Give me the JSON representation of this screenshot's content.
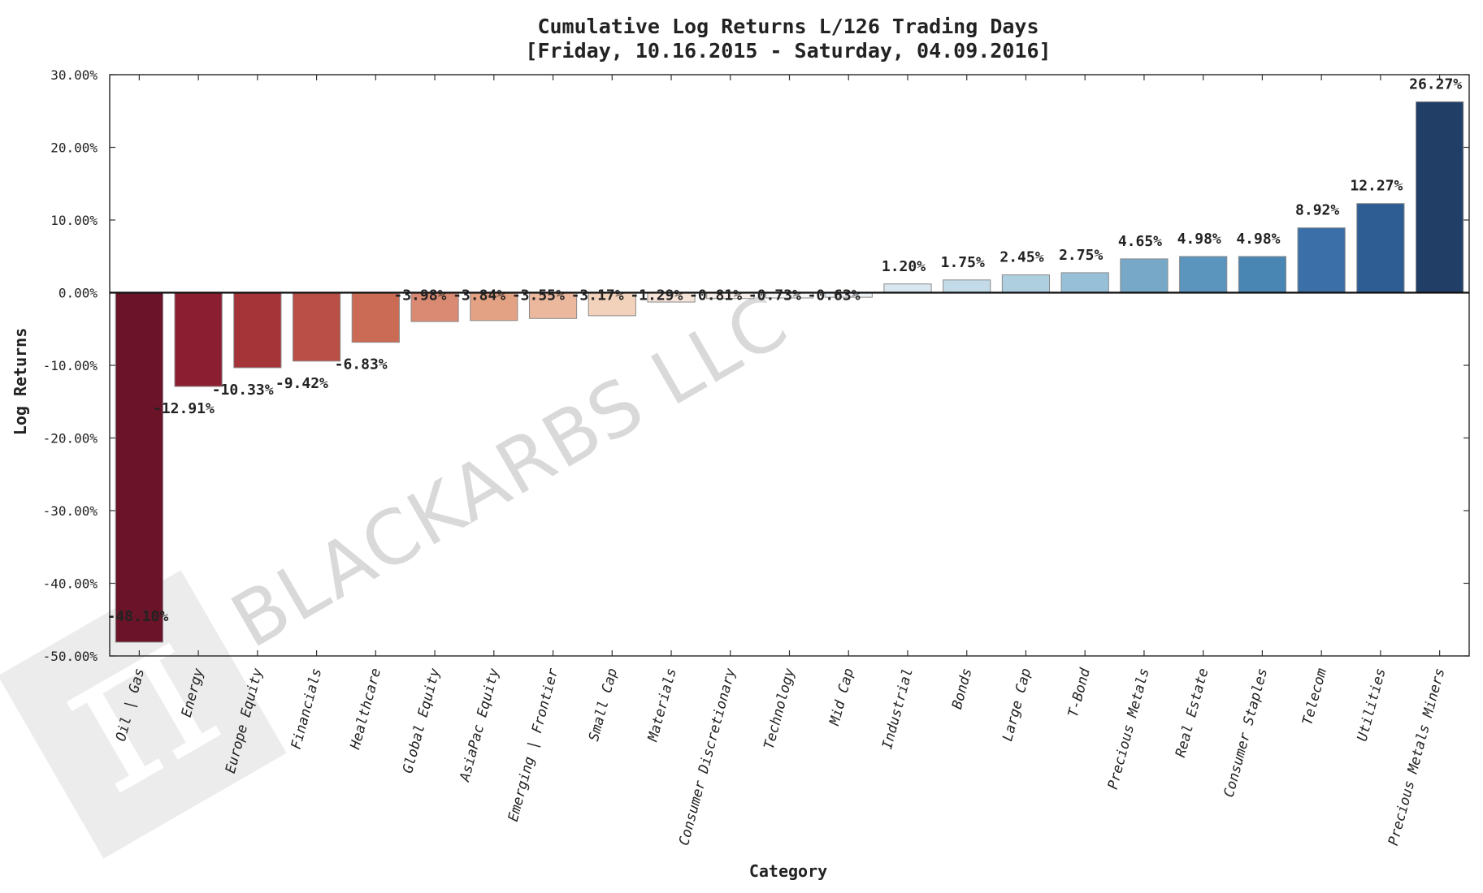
{
  "chart_data": {
    "type": "bar",
    "title": "Cumulative Log Returns L/126 Trading Days",
    "subtitle": "[Friday, 10.16.2015 - Saturday, 04.09.2016]",
    "xlabel": "Category",
    "ylabel": "Log Returns",
    "ylim": [
      -50,
      30
    ],
    "yticks": [
      30,
      20,
      10,
      0,
      -10,
      -20,
      -30,
      -40,
      -50
    ],
    "ytick_labels": [
      "30.00%",
      "20.00%",
      "10.00%",
      "0.00%",
      "-10.00%",
      "-20.00%",
      "-30.00%",
      "-40.00%",
      "-50.00%"
    ],
    "categories": [
      "Oil | Gas",
      "Energy",
      "Europe Equity",
      "Financials",
      "Healthcare",
      "Global Equity",
      "AsiaPac Equity",
      "Emerging | Frontier",
      "Small Cap",
      "Materials",
      "Consumer Discretionary",
      "Technology",
      "Mid Cap",
      "Industrial",
      "Bonds",
      "Large Cap",
      "T-Bond",
      "Precious Metals",
      "Real Estate",
      "Consumer Staples",
      "Telecom",
      "Utilities",
      "Precious Metals Miners"
    ],
    "values": [
      -48.1,
      -12.91,
      -10.33,
      -9.42,
      -6.83,
      -3.98,
      -3.84,
      -3.55,
      -3.17,
      -1.29,
      -0.81,
      -0.73,
      -0.63,
      1.2,
      1.75,
      2.45,
      2.75,
      4.65,
      4.98,
      4.98,
      8.92,
      12.27,
      26.27
    ],
    "value_labels": [
      "-48.10%",
      "-12.91%",
      "-10.33%",
      "-9.42%",
      "-6.83%",
      "-3.98%",
      "-3.84%",
      "-3.55%",
      "-3.17%",
      "-1.29%",
      "-0.81%",
      "-0.73%",
      "-0.63%",
      "1.20%",
      "1.75%",
      "2.45%",
      "2.75%",
      "4.65%",
      "4.98%",
      "4.98%",
      "8.92%",
      "12.27%",
      "26.27%"
    ],
    "colors": [
      "#6b1328",
      "#8c1e32",
      "#a53439",
      "#ba4f47",
      "#cc6b55",
      "#da8a72",
      "#e3a283",
      "#ebb89e",
      "#f2d2bb",
      "#f6e3d8",
      "#f7eeea",
      "#f7f5f4",
      "#eef2f6",
      "#d9e8f0",
      "#c3dbe8",
      "#aecfe0",
      "#97c0d8",
      "#77a8c8",
      "#5b95bd",
      "#4a86b3",
      "#3a70a7",
      "#2d5d93",
      "#213e66"
    ],
    "grid": false,
    "legend": "none"
  },
  "watermark": {
    "text": "BLACKARBS LLC",
    "logo_glyph": "π",
    "color": "#d9d9d9"
  }
}
